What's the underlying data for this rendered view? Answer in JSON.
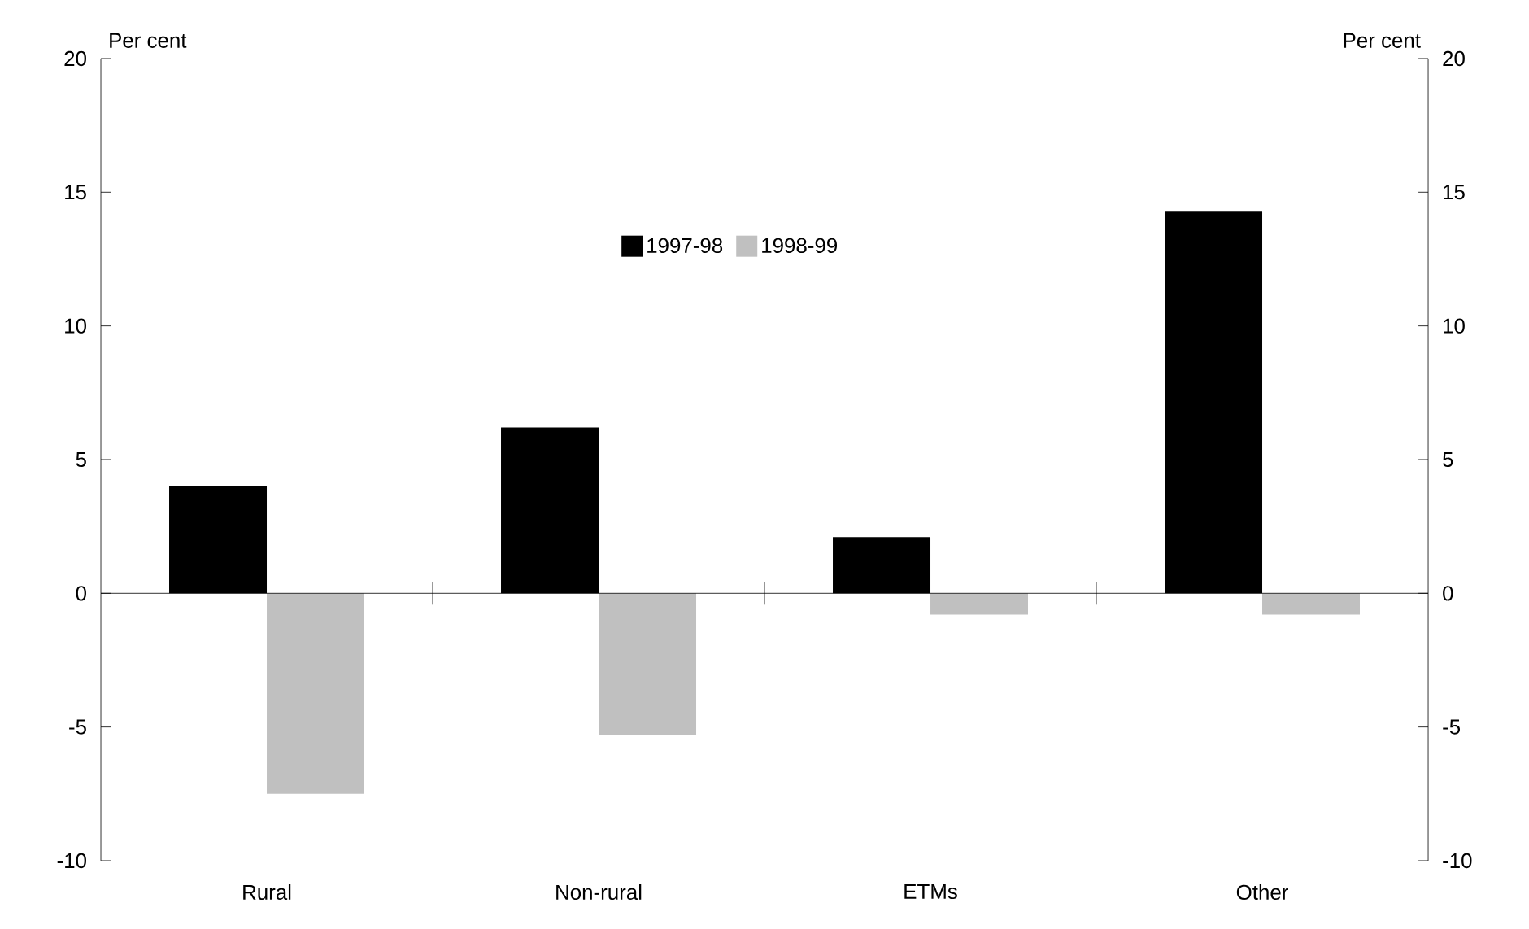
{
  "chart_data": {
    "type": "bar",
    "categories": [
      "Rural",
      "Non-rural",
      "ETMs",
      "Other"
    ],
    "series": [
      {
        "name": "1997-98",
        "color": "#000000",
        "values": [
          4.0,
          6.2,
          2.1,
          14.3
        ]
      },
      {
        "name": "1998-99",
        "color": "#c0c0c0",
        "values": [
          -7.5,
          -5.3,
          -0.8,
          -0.8
        ]
      }
    ],
    "ylabel": "Per cent",
    "y2label": "Per cent",
    "ylim": [
      -10,
      20
    ],
    "yticks": [
      -10,
      -5,
      0,
      5,
      10,
      15,
      20
    ],
    "y2lim": [
      -10,
      20
    ],
    "y2ticks": [
      -10,
      -5,
      0,
      5,
      10,
      15,
      20
    ],
    "legend": "top"
  }
}
